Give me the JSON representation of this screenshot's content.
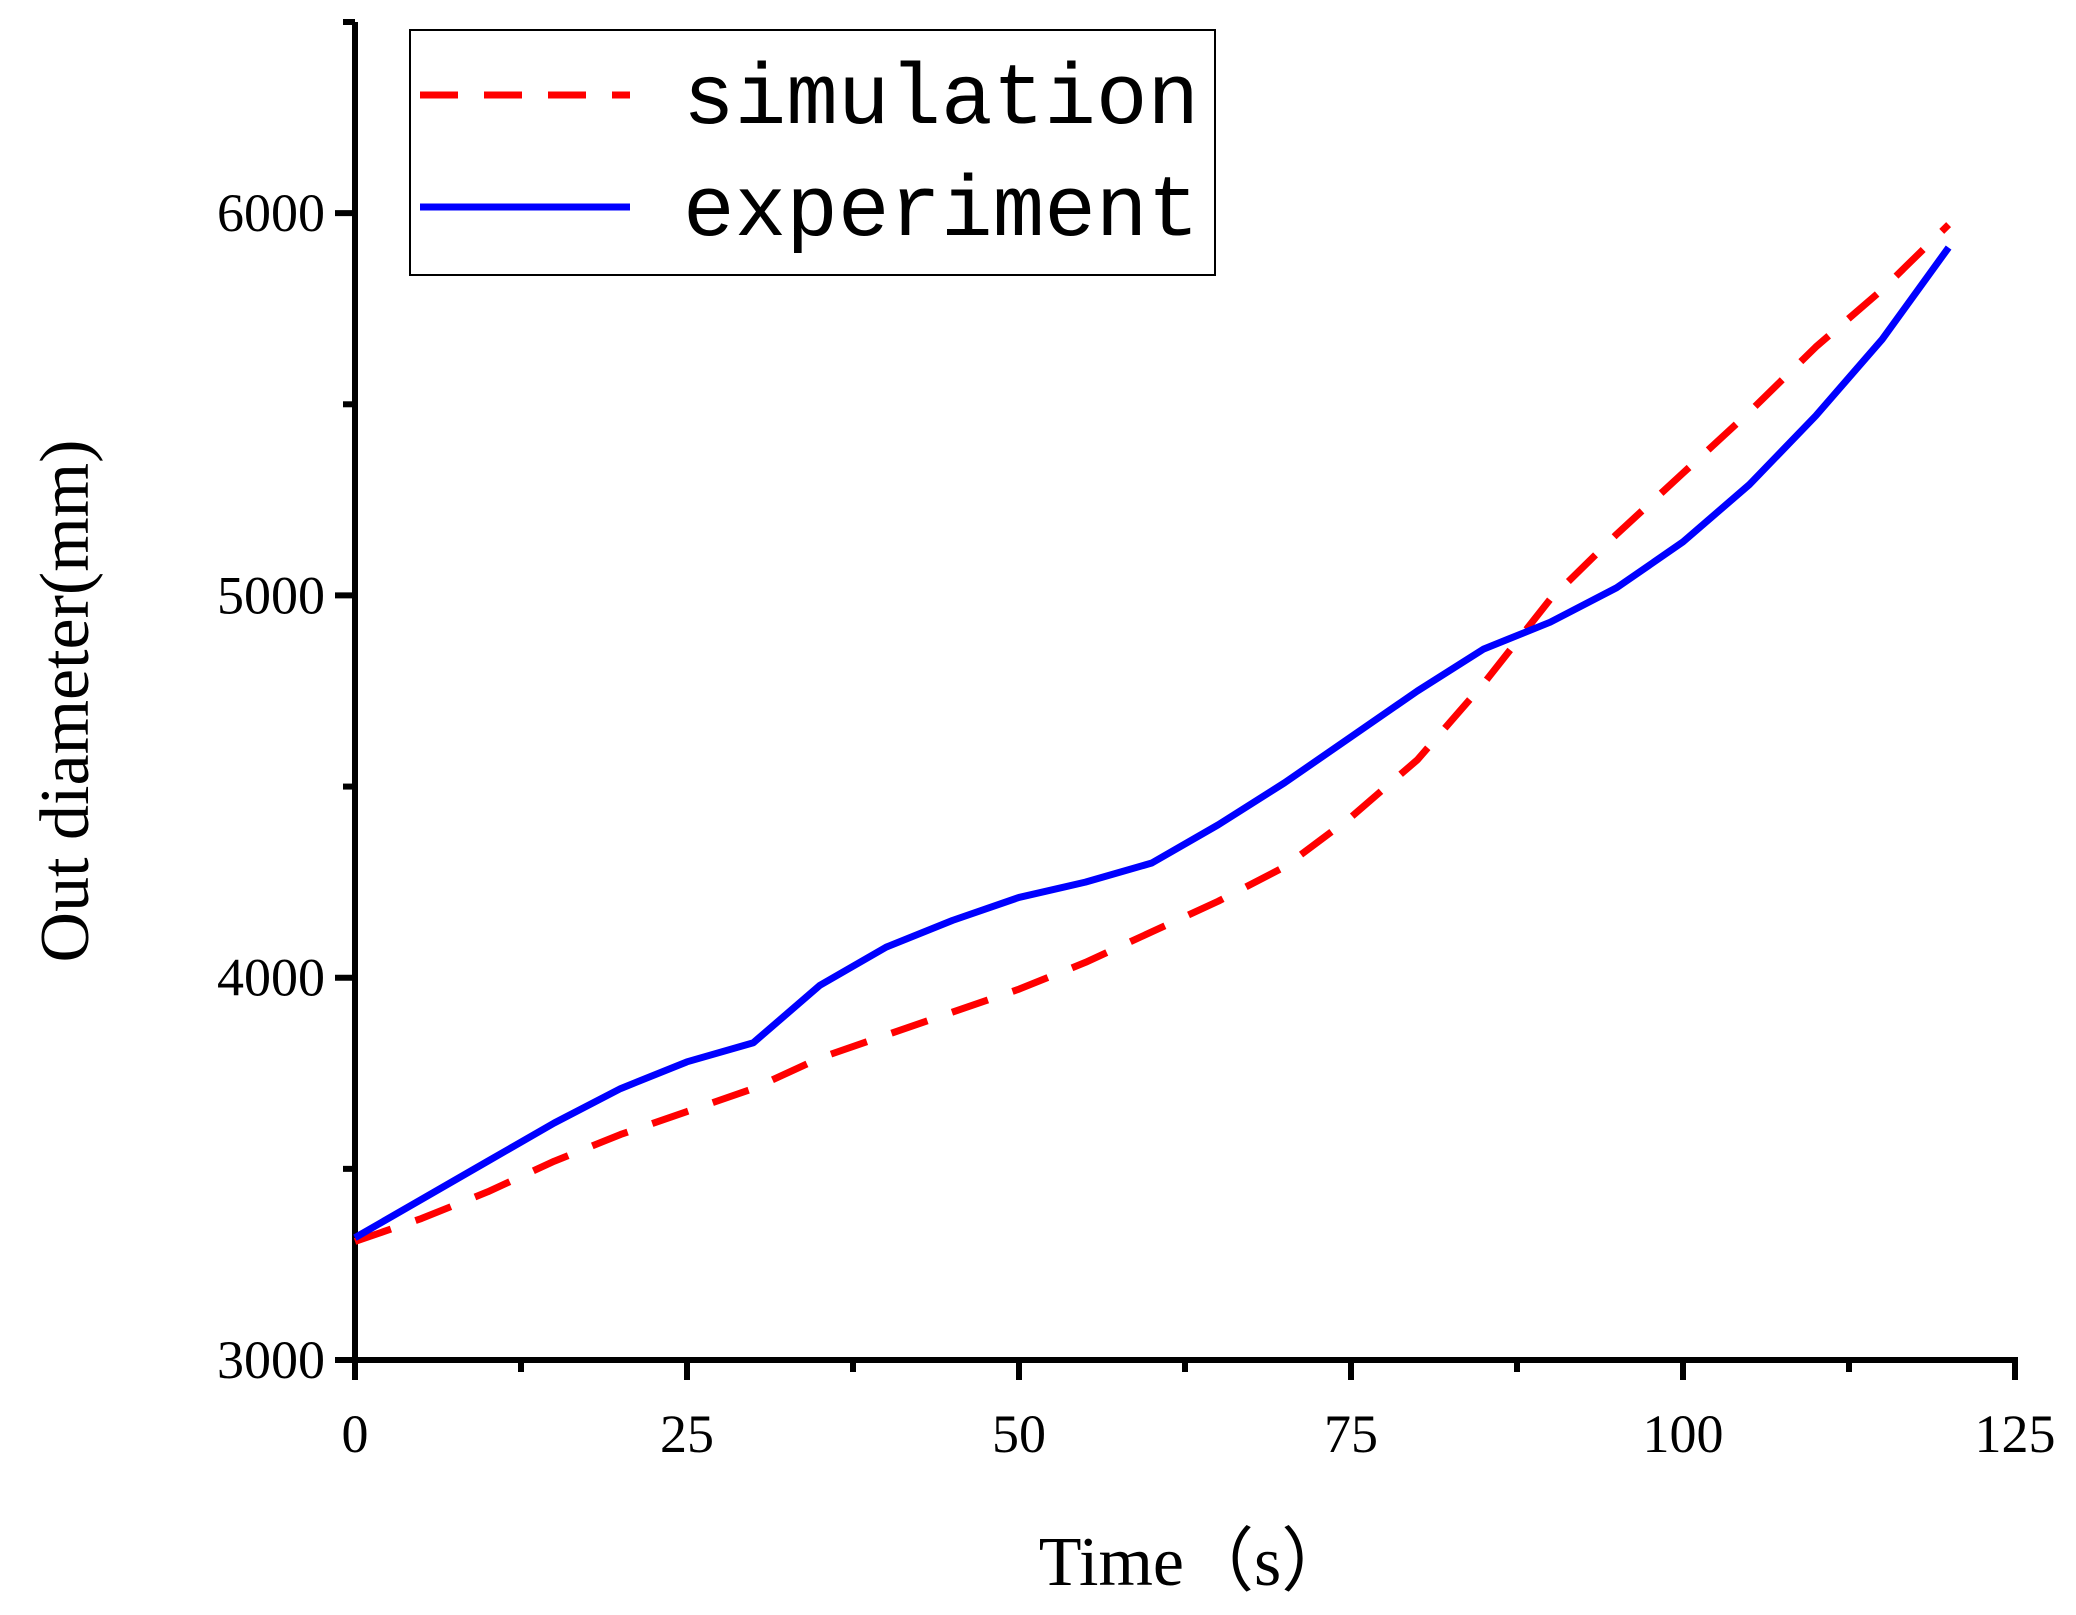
{
  "chart_data": {
    "type": "line",
    "title": "",
    "xlabel": "Time（s）",
    "ylabel": "Out diameter(mm)",
    "xlim": [
      0,
      125
    ],
    "ylim": [
      3000,
      6500
    ],
    "x_ticks": [
      0,
      25,
      50,
      75,
      100,
      125
    ],
    "x_tick_labels": [
      "0",
      "25",
      "50",
      "75",
      "100",
      "125"
    ],
    "y_ticks": [
      3000,
      4000,
      5000,
      6000
    ],
    "y_tick_labels": [
      "3000",
      "4000",
      "5000",
      "6000"
    ],
    "grid": false,
    "legend_position": "top-left",
    "series": [
      {
        "name": "simulation",
        "color": "#ff0000",
        "style": "dashed",
        "x": [
          0,
          5,
          10,
          15,
          20,
          25,
          30,
          35,
          40,
          45,
          50,
          55,
          60,
          65,
          70,
          75,
          80,
          85,
          90,
          95,
          100,
          105,
          110,
          115,
          120
        ],
        "y": [
          3310,
          3370,
          3440,
          3520,
          3590,
          3650,
          3710,
          3790,
          3850,
          3910,
          3970,
          4040,
          4120,
          4200,
          4290,
          4420,
          4570,
          4770,
          4990,
          5160,
          5320,
          5480,
          5650,
          5800,
          5970
        ]
      },
      {
        "name": "experiment",
        "color": "#0000ff",
        "style": "solid",
        "x": [
          0,
          5,
          10,
          15,
          20,
          25,
          30,
          35,
          40,
          45,
          50,
          55,
          60,
          65,
          70,
          75,
          80,
          85,
          90,
          95,
          100,
          105,
          110,
          115,
          120
        ],
        "y": [
          3320,
          3420,
          3520,
          3620,
          3710,
          3780,
          3830,
          3980,
          4080,
          4150,
          4210,
          4250,
          4300,
          4400,
          4510,
          4630,
          4750,
          4860,
          4930,
          5020,
          5140,
          5290,
          5470,
          5670,
          5910
        ]
      }
    ]
  }
}
